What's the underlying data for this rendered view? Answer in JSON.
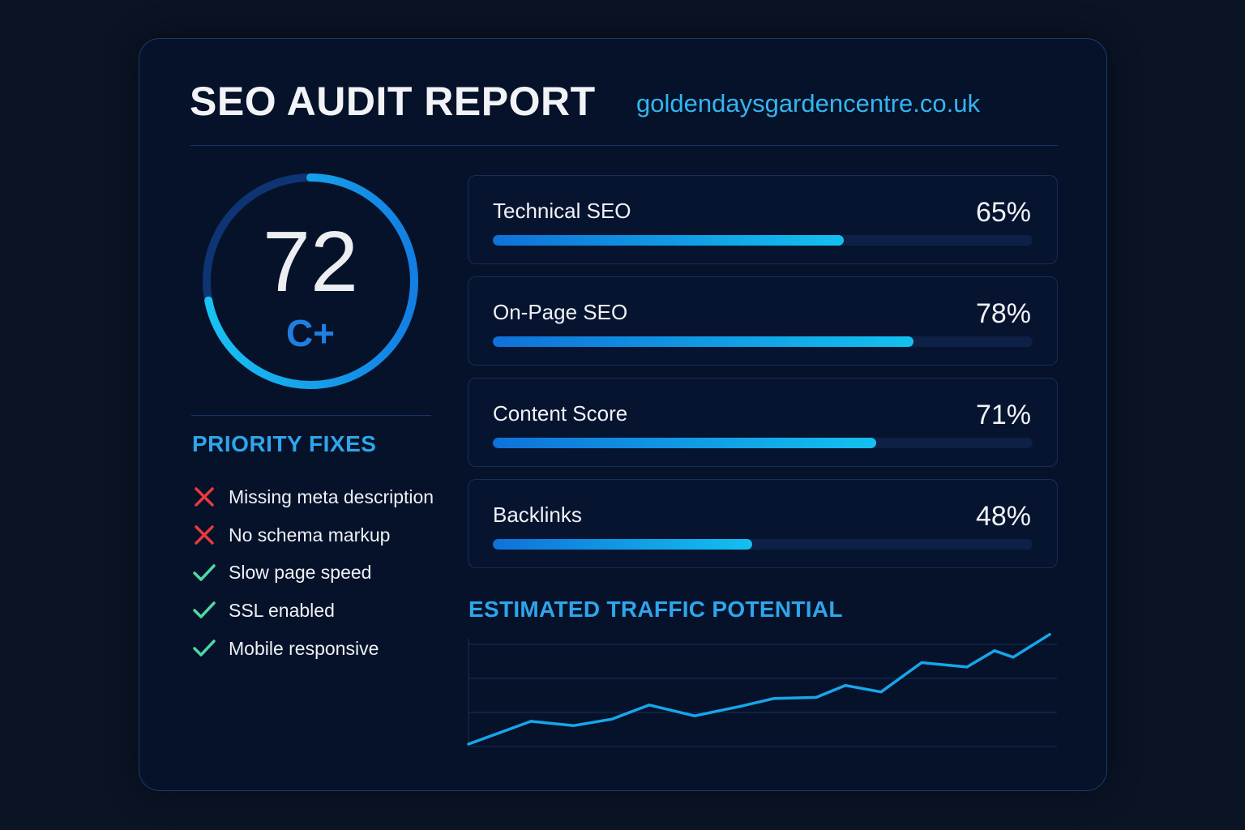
{
  "header": {
    "title": "SEO AUDIT REPORT",
    "domain": "goldendaysgardencentre.co.uk"
  },
  "overall": {
    "score": "72",
    "grade": "C+",
    "percent": 72
  },
  "priority_fixes": {
    "title": "PRIORITY FIXES",
    "items": [
      {
        "label": "Missing meta description",
        "status": "fail",
        "icon": "x-icon"
      },
      {
        "label": "No schema markup",
        "status": "fail",
        "icon": "x-icon"
      },
      {
        "label": "Slow page speed",
        "status": "pass",
        "icon": "check-icon"
      },
      {
        "label": "SSL enabled",
        "status": "pass",
        "icon": "check-icon"
      },
      {
        "label": "Mobile responsive",
        "status": "pass",
        "icon": "check-icon"
      }
    ]
  },
  "metrics": [
    {
      "label": "Technical SEO",
      "value": "65%",
      "percent": 65
    },
    {
      "label": "On-Page SEO",
      "value": "78%",
      "percent": 78
    },
    {
      "label": "Content Score",
      "value": "71%",
      "percent": 71
    },
    {
      "label": "Backlinks",
      "value": "48%",
      "percent": 48
    }
  ],
  "traffic": {
    "title": "ESTIMATED TRAFFIC POTENTIAL"
  },
  "colors": {
    "background": "#0a1425",
    "card": "#06122a",
    "accent": "#2fa5ea",
    "bar_start": "#0f72d9",
    "bar_end": "#13c0ef",
    "fail": "#e8393f",
    "pass": "#4fd8a5",
    "grade": "#1f7fe0"
  },
  "chart_data": {
    "type": "line",
    "title": "ESTIMATED TRAFFIC POTENTIAL",
    "xlabel": "",
    "ylabel": "",
    "grid": true,
    "gridlines": 4,
    "x": [
      1,
      2,
      3,
      4,
      5,
      6,
      7,
      8,
      9,
      10,
      11,
      12,
      13,
      14,
      15,
      16
    ],
    "series": [
      {
        "name": "Traffic potential",
        "values": [
          0,
          21,
          17,
          23,
          36,
          26,
          35,
          42,
          43,
          54,
          48,
          75,
          71,
          86,
          80,
          101
        ]
      }
    ],
    "ylim": [
      0,
      100
    ]
  }
}
